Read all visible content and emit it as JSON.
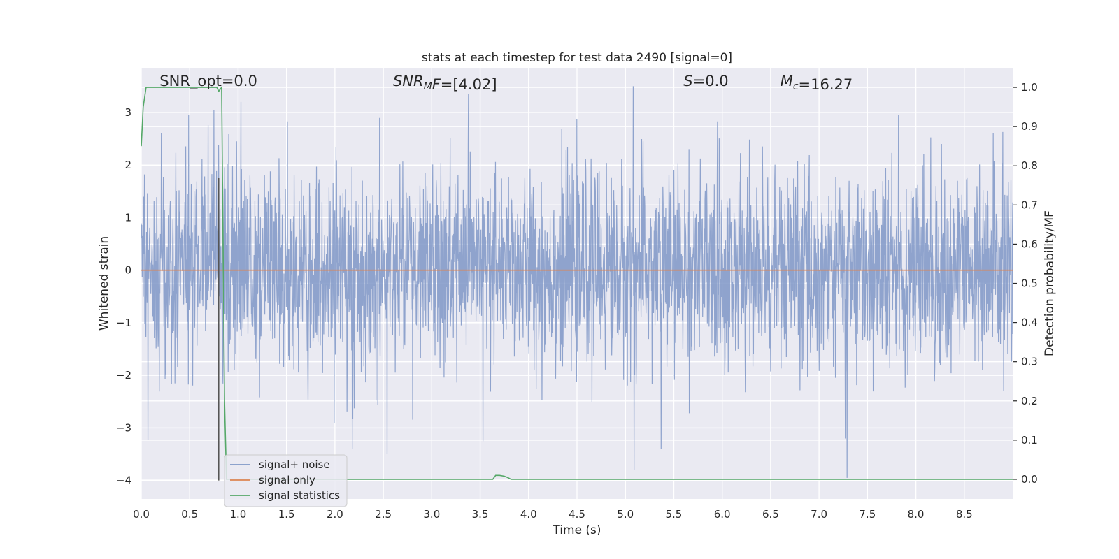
{
  "chart_data": {
    "type": "line",
    "title": "stats at each timestep for test data 2490 [signal=0]",
    "xlabel": "Time (s)",
    "ylabel": "Whitened strain",
    "y2label": "Detection probability/MF",
    "xlim": [
      0.0,
      9.0
    ],
    "ylim": [
      -4.35,
      3.85
    ],
    "y2lim": [
      -0.05,
      1.05
    ],
    "x_ticks": [
      0.0,
      0.5,
      1.0,
      1.5,
      2.0,
      2.5,
      3.0,
      3.5,
      4.0,
      4.5,
      5.0,
      5.5,
      6.0,
      6.5,
      7.0,
      7.5,
      8.0,
      8.5
    ],
    "x_tick_labels": [
      "0.0",
      "0.5",
      "1.0",
      "1.5",
      "2.0",
      "2.5",
      "3.0",
      "3.5",
      "4.0",
      "4.5",
      "5.0",
      "5.5",
      "6.0",
      "6.5",
      "7.0",
      "7.5",
      "8.0",
      "8.5"
    ],
    "y_ticks": [
      -4,
      -3,
      -2,
      -1,
      0,
      1,
      2,
      3
    ],
    "y_tick_labels": [
      "−4",
      "−3",
      "−2",
      "−1",
      "0",
      "1",
      "2",
      "3"
    ],
    "y2_ticks": [
      0.0,
      0.1,
      0.2,
      0.3,
      0.4,
      0.5,
      0.6,
      0.7,
      0.8,
      0.9,
      1.0
    ],
    "y2_tick_labels": [
      "0.0",
      "0.1",
      "0.2",
      "0.3",
      "0.4",
      "0.5",
      "0.6",
      "0.7",
      "0.8",
      "0.9",
      "1.0"
    ],
    "grid": true,
    "background": "#eaeaf2",
    "annotations": [
      {
        "parts": [
          {
            "t": "SNR_opt=0.0"
          }
        ],
        "x": 0.19,
        "y": 3.6
      },
      {
        "parts": [
          {
            "t": "SNR",
            "i": true
          },
          {
            "t": "M",
            "i": true,
            "sub": true
          },
          {
            "t": "F",
            "i": true
          },
          {
            "t": "=[4.02]"
          }
        ],
        "x": 2.6,
        "y": 3.6
      },
      {
        "parts": [
          {
            "t": "S",
            "i": true
          },
          {
            "t": "=0.0"
          }
        ],
        "x": 5.6,
        "y": 3.6
      },
      {
        "parts": [
          {
            "t": "M",
            "i": true
          },
          {
            "t": "c",
            "i": true,
            "sub": true
          },
          {
            "t": "=16.27"
          }
        ],
        "x": 6.6,
        "y": 3.6
      }
    ],
    "vline": {
      "x": 0.8,
      "y0": -4.0,
      "y1": 1.75,
      "color": "#555555"
    },
    "series": [
      {
        "name": "signal+ noise",
        "color": "#7f97c7",
        "axis": "left",
        "kind": "noise",
        "n_points": 3000,
        "sigma": 0.9,
        "spikes": [
          {
            "x": 0.07,
            "y": -3.22
          },
          {
            "x": 0.49,
            "y": 2.95
          },
          {
            "x": 0.75,
            "y": 3.05
          },
          {
            "x": 1.03,
            "y": 3.2
          },
          {
            "x": 2.18,
            "y": -3.4
          },
          {
            "x": 2.54,
            "y": -3.5
          },
          {
            "x": 3.38,
            "y": 3.35
          },
          {
            "x": 3.53,
            "y": -3.25
          },
          {
            "x": 5.08,
            "y": 3.5
          },
          {
            "x": 5.09,
            "y": -3.8
          },
          {
            "x": 5.37,
            "y": -3.4
          },
          {
            "x": 7.29,
            "y": -3.95
          },
          {
            "x": 7.27,
            "y": -3.2
          },
          {
            "x": 7.82,
            "y": 2.95
          },
          {
            "x": 8.8,
            "y": 2.6
          }
        ]
      },
      {
        "name": "signal only",
        "color": "#dd8452",
        "axis": "left",
        "x": [
          0.0,
          9.0
        ],
        "y": [
          0.0,
          0.0
        ]
      },
      {
        "name": "signal statistics",
        "color": "#55a868",
        "axis": "right",
        "x": [
          0.0,
          0.02,
          0.05,
          0.1,
          0.2,
          0.78,
          0.8,
          0.83,
          0.86,
          0.88,
          3.6,
          3.63,
          3.66,
          3.7,
          3.75,
          3.78,
          3.82,
          9.0
        ],
        "y": [
          0.85,
          0.95,
          1.0,
          1.0,
          1.0,
          1.0,
          0.99,
          1.0,
          0.2,
          0.0,
          0.0,
          0.0,
          0.01,
          0.01,
          0.008,
          0.005,
          0.0,
          0.0
        ]
      }
    ],
    "legend": {
      "position": "lower-left",
      "entries": [
        "signal+ noise",
        "signal only",
        "signal statistics"
      ]
    }
  }
}
